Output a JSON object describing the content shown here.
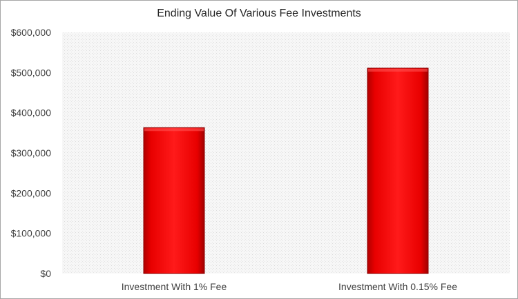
{
  "chart_data": {
    "type": "bar",
    "title": "Ending Value Of Various Fee Investments",
    "xlabel": "",
    "ylabel": "",
    "categories": [
      "Investment With 1% Fee",
      "Investment With 0.15% Fee"
    ],
    "values": [
      363000,
      511000
    ],
    "ylim": [
      0,
      600000
    ],
    "yticks": [
      0,
      100000,
      200000,
      300000,
      400000,
      500000,
      600000
    ],
    "ytick_labels": [
      "$0",
      "$100,000",
      "$200,000",
      "$300,000",
      "$400,000",
      "$500,000",
      "$600,000"
    ],
    "grid": false,
    "legend": "none",
    "bar_color": "#e00000",
    "plot_background": "#f2f2f2"
  }
}
